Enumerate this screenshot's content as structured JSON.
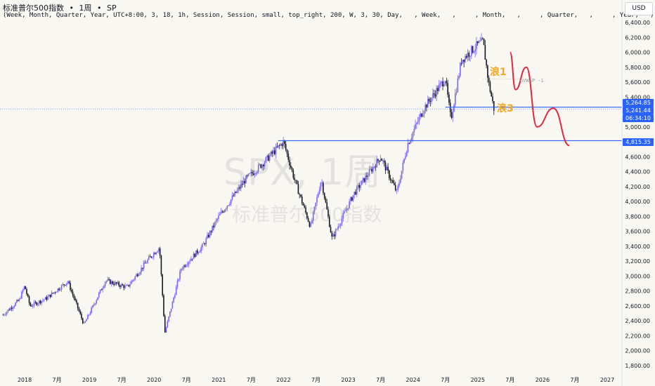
{
  "header": {
    "symbol_name": "标准普尔500指数",
    "interval": "1周",
    "exchange": "SP",
    "separator": "•",
    "indicator_params": "(Week, Month, Quarter, Year, UTC+8:00, 3, 18, 1h, Session, Session, small, top_right, 200, W, 3, 30, Day,   , Week,   ,     , Month,   ,     , Quarter,   ,     , Year,   )"
  },
  "currency_button": "USD",
  "watermark": {
    "ticker": "SPX, 1周",
    "name": "标准普尔500指数"
  },
  "annotations": {
    "wave1": "浪1",
    "wave3": "浪3",
    "vwap": "pVWAP -1"
  },
  "price_tags": {
    "upper": "5,264.85",
    "current": "5,241.44",
    "countdown": "06:34:10",
    "support": "4,815.35"
  },
  "colors": {
    "up_candle": "#7b61ff",
    "down_candle": "#131722",
    "hline": "#2962ff",
    "projection": "#e0263f",
    "wave_label": "#f5a623",
    "background": "#f9f7f1"
  },
  "chart_data": {
    "type": "candlestick",
    "title": "",
    "xlabel": "",
    "ylabel": "",
    "ylim": [
      1700,
      6500
    ],
    "x_range": [
      "2017-09",
      "2027-04"
    ],
    "y_ticks": [
      "6,400.00",
      "6,200.00",
      "6,000.00",
      "5,800.00",
      "5,600.00",
      "5,400.00",
      "5,200.00",
      "5,000.00",
      "4,800.00",
      "4,600.00",
      "4,400.00",
      "4,200.00",
      "4,000.00",
      "3,800.00",
      "3,600.00",
      "3,400.00",
      "3,200.00",
      "3,000.00",
      "2,800.00",
      "2,600.00",
      "2,400.00",
      "2,200.00",
      "2,000.00",
      "1,800.00"
    ],
    "x_ticks": [
      "2018",
      "7月",
      "2019",
      "7月",
      "2020",
      "7月",
      "2021",
      "7月",
      "2022",
      "7月",
      "2023",
      "7月",
      "2024",
      "7月",
      "2025",
      "7月",
      "2026",
      "7月",
      "2027"
    ],
    "price_path": [
      [
        "2017-09",
        2480
      ],
      [
        "2017-12",
        2680
      ],
      [
        "2018-01",
        2870
      ],
      [
        "2018-02",
        2600
      ],
      [
        "2018-05",
        2700
      ],
      [
        "2018-09",
        2930
      ],
      [
        "2018-12",
        2350
      ],
      [
        "2019-04",
        2940
      ],
      [
        "2019-08",
        2850
      ],
      [
        "2019-12",
        3230
      ],
      [
        "2020-02",
        3390
      ],
      [
        "2020-03",
        2240
      ],
      [
        "2020-06",
        3100
      ],
      [
        "2020-10",
        3400
      ],
      [
        "2021-01",
        3800
      ],
      [
        "2021-06",
        4300
      ],
      [
        "2021-09",
        4500
      ],
      [
        "2022-01",
        4800
      ],
      [
        "2022-03",
        4300
      ],
      [
        "2022-06",
        3660
      ],
      [
        "2022-08",
        4300
      ],
      [
        "2022-10",
        3500
      ],
      [
        "2023-02",
        4100
      ],
      [
        "2023-07",
        4600
      ],
      [
        "2023-10",
        4120
      ],
      [
        "2023-12",
        4770
      ],
      [
        "2024-03",
        5250
      ],
      [
        "2024-07",
        5650
      ],
      [
        "2024-08",
        5100
      ],
      [
        "2024-10",
        5900
      ],
      [
        "2025-01",
        6100
      ],
      [
        "2025-02",
        6140
      ],
      [
        "2025-03",
        5600
      ],
      [
        "2025-04",
        5241
      ]
    ],
    "horizontal_levels": [
      5264.85,
      4815.35
    ],
    "projection_path": [
      [
        "2025-07",
        6000
      ],
      [
        "2025-08",
        5500
      ],
      [
        "2025-10",
        5800
      ],
      [
        "2025-12",
        5000
      ],
      [
        "2026-03",
        5250
      ],
      [
        "2026-06",
        4750
      ]
    ]
  }
}
